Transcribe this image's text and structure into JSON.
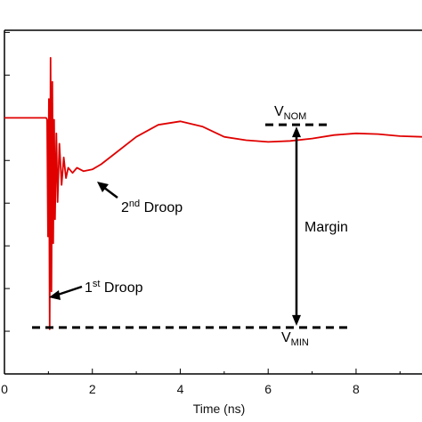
{
  "chart_data": {
    "type": "line",
    "xlabel": "Time (ns)",
    "ylabel": "",
    "title": "",
    "xlim": [
      0,
      9.5
    ],
    "ylim": [
      0,
      1
    ],
    "x_ticks": [
      "0",
      "2",
      "4",
      "6",
      "8"
    ],
    "grid": false,
    "line_color": "#e00000",
    "series": [
      {
        "points": [
          [
            0.0,
            0.745
          ],
          [
            0.95,
            0.745
          ],
          [
            0.97,
            0.74
          ],
          [
            0.99,
            0.4
          ],
          [
            1.01,
            0.8
          ],
          [
            1.03,
            0.13
          ],
          [
            1.05,
            0.92
          ],
          [
            1.07,
            0.24
          ],
          [
            1.09,
            0.85
          ],
          [
            1.11,
            0.38
          ],
          [
            1.13,
            0.74
          ],
          [
            1.15,
            0.45
          ],
          [
            1.18,
            0.7
          ],
          [
            1.21,
            0.5
          ],
          [
            1.25,
            0.67
          ],
          [
            1.3,
            0.55
          ],
          [
            1.35,
            0.63
          ],
          [
            1.4,
            0.57
          ],
          [
            1.45,
            0.6
          ],
          [
            1.55,
            0.585
          ],
          [
            1.65,
            0.6
          ],
          [
            1.8,
            0.59
          ],
          [
            2.0,
            0.595
          ],
          [
            2.2,
            0.61
          ],
          [
            2.5,
            0.64
          ],
          [
            3.0,
            0.69
          ],
          [
            3.5,
            0.725
          ],
          [
            4.0,
            0.735
          ],
          [
            4.5,
            0.72
          ],
          [
            5.0,
            0.69
          ],
          [
            5.5,
            0.68
          ],
          [
            6.0,
            0.675
          ],
          [
            6.5,
            0.678
          ],
          [
            7.0,
            0.685
          ],
          [
            7.5,
            0.695
          ],
          [
            8.0,
            0.7
          ],
          [
            8.5,
            0.698
          ],
          [
            9.0,
            0.692
          ],
          [
            9.5,
            0.69
          ]
        ]
      }
    ],
    "annotations": {
      "first_droop": {
        "main": "1",
        "sup": "st",
        "rest": " Droop"
      },
      "second_droop": {
        "main": "2",
        "sup": "nd",
        "rest": " Droop"
      },
      "vnom": {
        "main": "V",
        "sub": "NOM",
        "level": 0.725
      },
      "vmin": {
        "main": "V",
        "sub": "MIN",
        "level": 0.135
      },
      "margin": "Margin"
    }
  }
}
